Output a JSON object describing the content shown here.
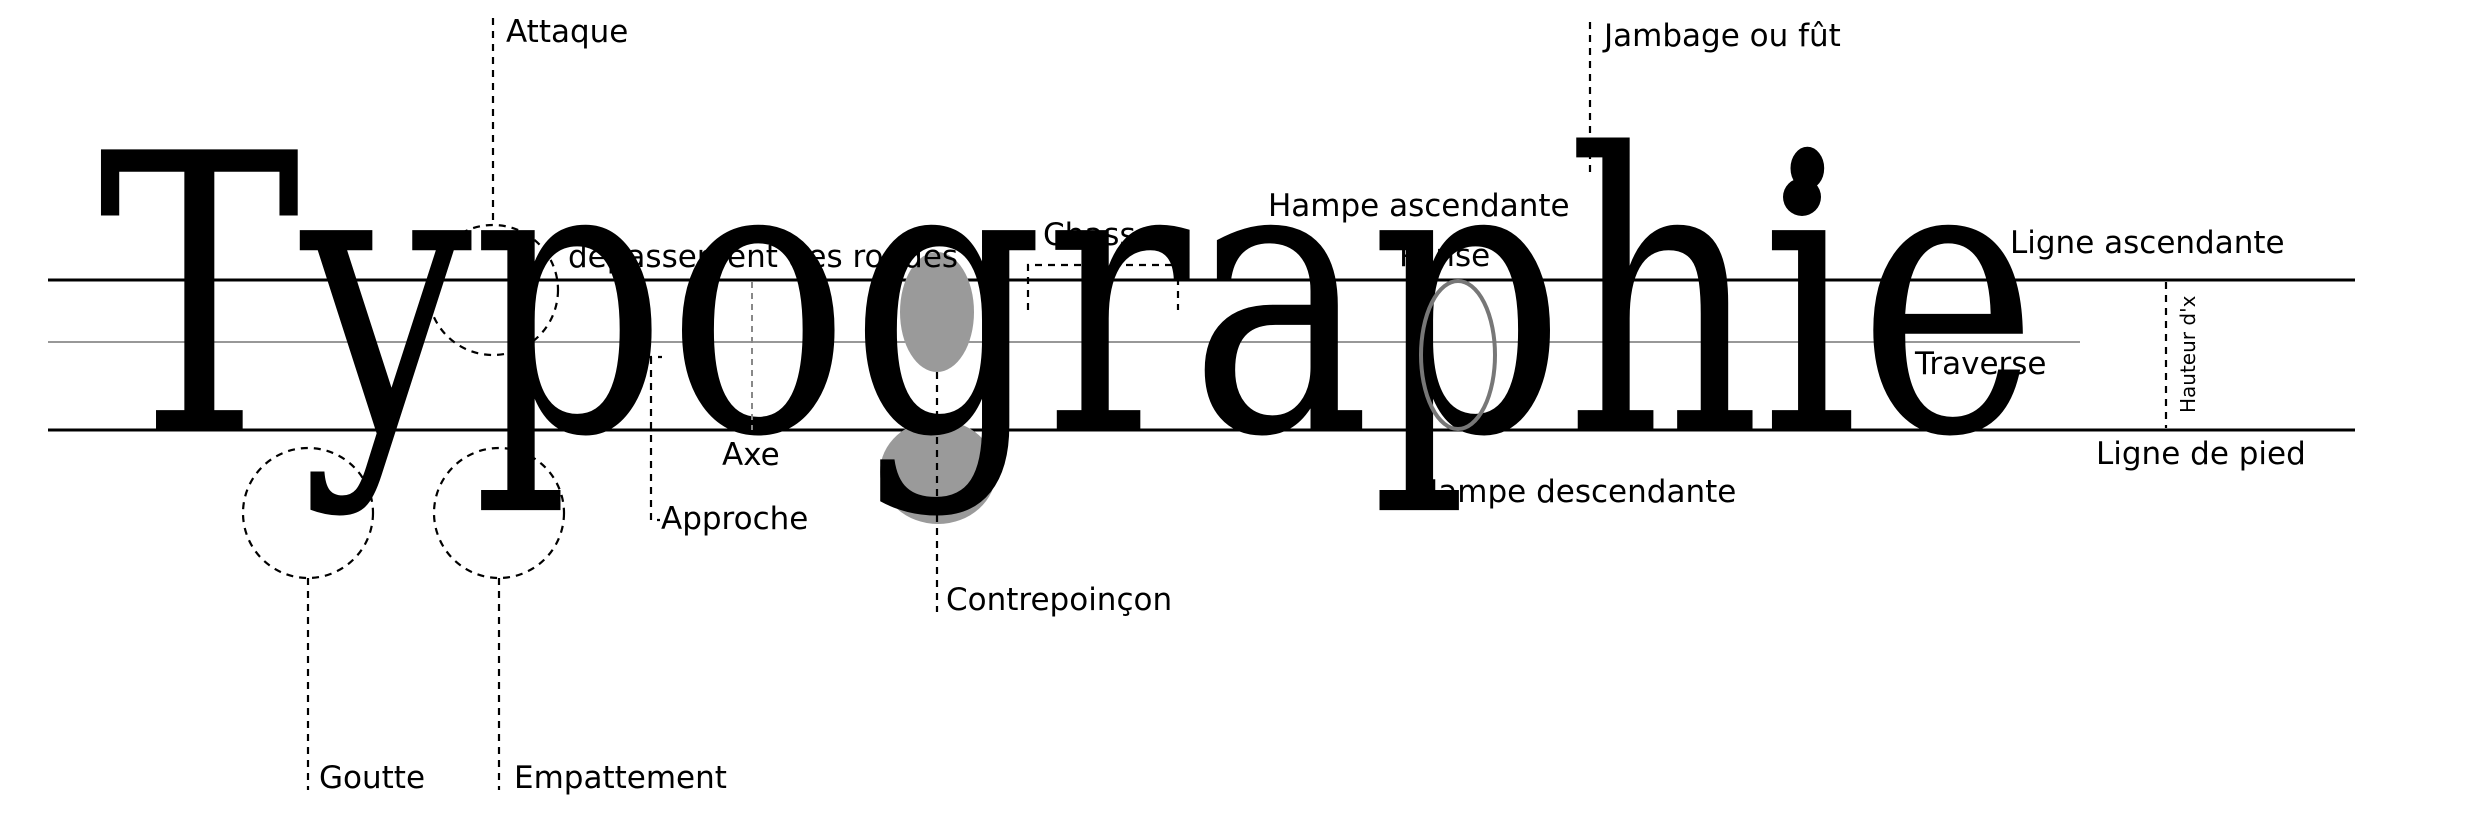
{
  "word": "Typographie",
  "labels": {
    "attaque": "Attaque",
    "jambage": "Jambage ou fût",
    "hampe_ascendante": "Hampe ascendante",
    "depassement": "dépassement des rondes",
    "chasse": "Chasse",
    "panse": "Panse",
    "ligne_ascendante": "Ligne ascendante",
    "traverse": "Traverse",
    "hauteur_x": "Hauteur d'x",
    "axe": "Axe",
    "ligne_de_pied": "Ligne de pied",
    "hampe_descendante": "Hampe descendante",
    "approche": "Approche",
    "contrepoincon": "Contrepoinçon",
    "goutte": "Goutte",
    "empattement": "Empattement"
  },
  "colors": {
    "ink": "#000000",
    "counter_fill": "#9a9a9a",
    "guide_grey": "#777777"
  }
}
